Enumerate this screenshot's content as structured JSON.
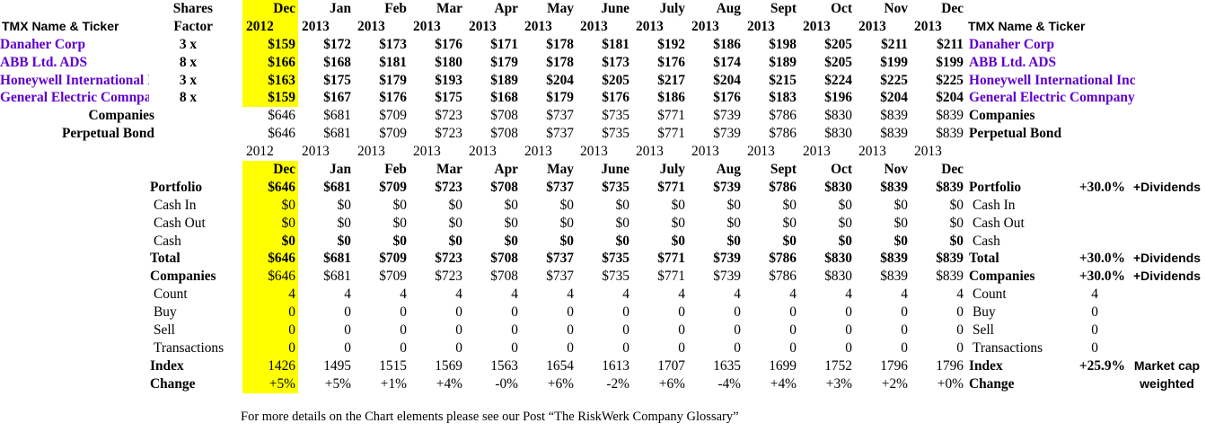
{
  "colors": {
    "highlight": "#FFFF00",
    "company_name": "#6000CE"
  },
  "headers": {
    "tmx_left": "TMX Name & Ticker",
    "tmx_right": "TMX Name & Ticker",
    "shares_line1": "Shares",
    "shares_line2": "Factor"
  },
  "months": [
    "Dec",
    "Jan",
    "Feb",
    "Mar",
    "Apr",
    "May",
    "June",
    "July",
    "Aug",
    "Sept",
    "Oct",
    "Nov",
    "Dec"
  ],
  "years": [
    "2012",
    "2013",
    "2013",
    "2013",
    "2013",
    "2013",
    "2013",
    "2013",
    "2013",
    "2013",
    "2013",
    "2013",
    "2013"
  ],
  "companies": [
    {
      "name": "Danaher Corp",
      "factor": "3 x",
      "values": [
        "$159",
        "$172",
        "$173",
        "$176",
        "$171",
        "$178",
        "$181",
        "$192",
        "$186",
        "$198",
        "$205",
        "$211",
        "$211"
      ]
    },
    {
      "name": "ABB Ltd. ADS",
      "factor": "8 x",
      "values": [
        "$166",
        "$168",
        "$181",
        "$180",
        "$179",
        "$178",
        "$173",
        "$176",
        "$174",
        "$189",
        "$205",
        "$199",
        "$199"
      ]
    },
    {
      "name": "Honeywell International Inc",
      "factor": "3 x",
      "values": [
        "$163",
        "$175",
        "$179",
        "$193",
        "$189",
        "$204",
        "$205",
        "$217",
        "$204",
        "$215",
        "$224",
        "$225",
        "$225"
      ]
    },
    {
      "name": "General Electric Comnpany",
      "factor": "8 x",
      "values": [
        "$159",
        "$167",
        "$176",
        "$175",
        "$168",
        "$179",
        "$176",
        "$186",
        "$176",
        "$183",
        "$196",
        "$204",
        "$204"
      ]
    }
  ],
  "top_summary": [
    {
      "label": "Companies",
      "values": [
        "$646",
        "$681",
        "$709",
        "$723",
        "$708",
        "$737",
        "$735",
        "$771",
        "$739",
        "$786",
        "$830",
        "$839",
        "$839"
      ]
    },
    {
      "label": "Perpetual Bond",
      "values": [
        "$646",
        "$681",
        "$709",
        "$723",
        "$708",
        "$737",
        "$735",
        "$771",
        "$739",
        "$786",
        "$830",
        "$839",
        "$839"
      ]
    }
  ],
  "portfolio_rows": [
    {
      "label": "Portfolio",
      "label_bold": true,
      "values_bold": true,
      "indent": false,
      "values": [
        "$646",
        "$681",
        "$709",
        "$723",
        "$708",
        "$737",
        "$735",
        "$771",
        "$739",
        "$786",
        "$830",
        "$839",
        "$839"
      ],
      "pct": "+30.0%",
      "note": "+Dividends"
    },
    {
      "label": "Cash In",
      "label_bold": false,
      "values_bold": false,
      "indent": true,
      "values": [
        "$0",
        "$0",
        "$0",
        "$0",
        "$0",
        "$0",
        "$0",
        "$0",
        "$0",
        "$0",
        "$0",
        "$0",
        "$0"
      ]
    },
    {
      "label": "Cash Out",
      "label_bold": false,
      "values_bold": false,
      "indent": true,
      "values": [
        "$0",
        "$0",
        "$0",
        "$0",
        "$0",
        "$0",
        "$0",
        "$0",
        "$0",
        "$0",
        "$0",
        "$0",
        "$0"
      ]
    },
    {
      "label": "Cash",
      "label_bold": false,
      "values_bold": true,
      "indent": true,
      "values": [
        "$0",
        "$0",
        "$0",
        "$0",
        "$0",
        "$0",
        "$0",
        "$0",
        "$0",
        "$0",
        "$0",
        "$0",
        "$0"
      ]
    },
    {
      "label": "Total",
      "label_bold": true,
      "values_bold": true,
      "indent": false,
      "values": [
        "$646",
        "$681",
        "$709",
        "$723",
        "$708",
        "$737",
        "$735",
        "$771",
        "$739",
        "$786",
        "$830",
        "$839",
        "$839"
      ],
      "pct": "+30.0%",
      "note": "+Dividends"
    },
    {
      "label": "Companies",
      "label_bold": true,
      "values_bold": false,
      "indent": false,
      "values": [
        "$646",
        "$681",
        "$709",
        "$723",
        "$708",
        "$737",
        "$735",
        "$771",
        "$739",
        "$786",
        "$830",
        "$839",
        "$839"
      ],
      "pct": "+30.0%",
      "note": "+Dividends"
    },
    {
      "label": "Count",
      "label_bold": false,
      "values_bold": false,
      "indent": true,
      "values": [
        "4",
        "4",
        "4",
        "4",
        "4",
        "4",
        "4",
        "4",
        "4",
        "4",
        "4",
        "4",
        "4"
      ],
      "extra": "4"
    },
    {
      "label": "Buy",
      "label_bold": false,
      "values_bold": false,
      "indent": true,
      "values": [
        "0",
        "0",
        "0",
        "0",
        "0",
        "0",
        "0",
        "0",
        "0",
        "0",
        "0",
        "0",
        "0"
      ],
      "extra": "0"
    },
    {
      "label": "Sell",
      "label_bold": false,
      "values_bold": false,
      "indent": true,
      "values": [
        "0",
        "0",
        "0",
        "0",
        "0",
        "0",
        "0",
        "0",
        "0",
        "0",
        "0",
        "0",
        "0"
      ],
      "extra": "0"
    },
    {
      "label": "Transactions",
      "label_bold": false,
      "values_bold": false,
      "indent": true,
      "values": [
        "0",
        "0",
        "0",
        "0",
        "0",
        "0",
        "0",
        "0",
        "0",
        "0",
        "0",
        "0",
        "0"
      ],
      "extra": "0"
    },
    {
      "label": "Index",
      "label_bold": true,
      "values_bold": false,
      "indent": false,
      "values": [
        "1426",
        "1495",
        "1515",
        "1569",
        "1563",
        "1654",
        "1613",
        "1707",
        "1635",
        "1699",
        "1752",
        "1796",
        "1796"
      ],
      "pct": "+25.9%",
      "note": "Market cap"
    },
    {
      "label": "Change",
      "label_bold": true,
      "values_bold": false,
      "indent": false,
      "values": [
        "+5%",
        "+5%",
        "+1%",
        "+4%",
        "-0%",
        "+6%",
        "-2%",
        "+6%",
        "-4%",
        "+4%",
        "+3%",
        "+2%",
        "+0%"
      ],
      "note": "weighted"
    }
  ],
  "footer_note": "For more details on the Chart elements please see our Post “The RiskWerk Company Glossary”"
}
